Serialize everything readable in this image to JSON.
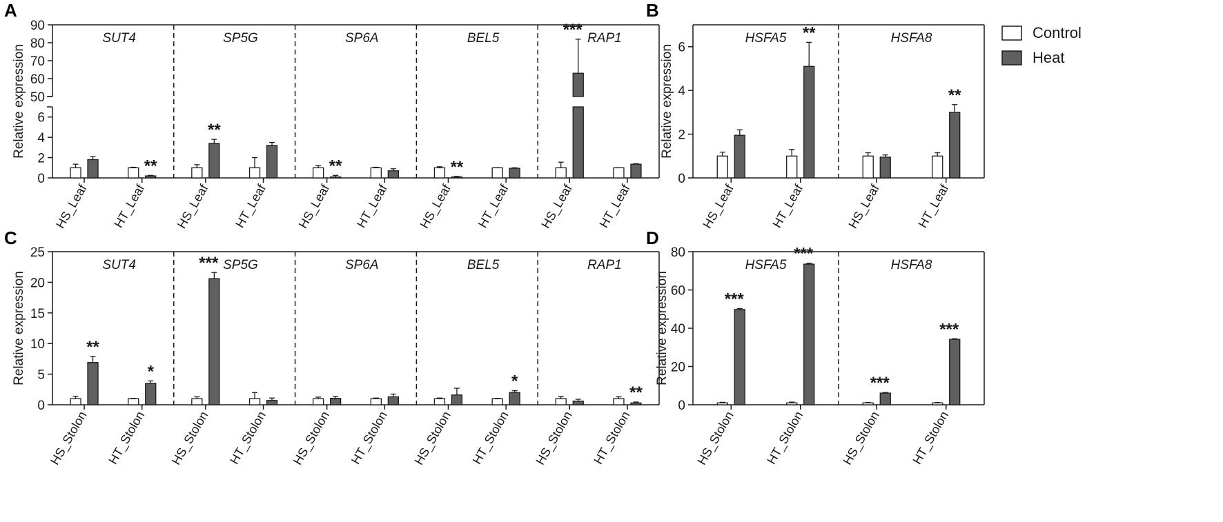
{
  "colors": {
    "control": "#ffffff",
    "heat": "#606060",
    "stroke": "#1a1a1a"
  },
  "legend": {
    "entries": [
      "Control",
      "Heat"
    ]
  },
  "chart_data": [
    {
      "panel": "A",
      "type": "bar",
      "ylabel": "Relative expression",
      "y_axis_break": true,
      "lower_ticks": [
        0,
        2,
        4,
        6
      ],
      "upper_ticks": [
        50,
        60,
        70,
        80,
        90
      ],
      "genes": [
        {
          "name": "SUT4",
          "groups": [
            {
              "label": "HS_Leaf",
              "control": 1.0,
              "control_err": 0.35,
              "heat": 1.8,
              "heat_err": 0.3,
              "sig": ""
            },
            {
              "label": "HT_Leaf",
              "control": 1.0,
              "control_err": 0.05,
              "heat": 0.2,
              "heat_err": 0.05,
              "sig": "**"
            }
          ]
        },
        {
          "name": "SP5G",
          "groups": [
            {
              "label": "HS_Leaf",
              "control": 1.0,
              "control_err": 0.3,
              "heat": 3.4,
              "heat_err": 0.4,
              "sig": "**"
            },
            {
              "label": "HT_Leaf",
              "control": 1.0,
              "control_err": 1.0,
              "heat": 3.2,
              "heat_err": 0.3,
              "sig": ""
            }
          ]
        },
        {
          "name": "SP6A",
          "groups": [
            {
              "label": "HS_Leaf",
              "control": 1.0,
              "control_err": 0.2,
              "heat": 0.1,
              "heat_err": 0.15,
              "sig": "**"
            },
            {
              "label": "HT_Leaf",
              "control": 1.0,
              "control_err": 0.05,
              "heat": 0.7,
              "heat_err": 0.2,
              "sig": ""
            }
          ]
        },
        {
          "name": "BEL5",
          "groups": [
            {
              "label": "HS_Leaf",
              "control": 1.0,
              "control_err": 0.1,
              "heat": 0.1,
              "heat_err": 0.05,
              "sig": "**"
            },
            {
              "label": "HT_Leaf",
              "control": 1.0,
              "control_err": 0.0,
              "heat": 0.95,
              "heat_err": 0.05,
              "sig": ""
            }
          ]
        },
        {
          "name": "RAP1",
          "groups": [
            {
              "label": "HS_Leaf",
              "control": 1.0,
              "control_err": 0.55,
              "heat": 63,
              "heat_err": 19,
              "sig": "***"
            },
            {
              "label": "HT_Leaf",
              "control": 1.0,
              "control_err": 0.0,
              "heat": 1.35,
              "heat_err": 0.05,
              "sig": ""
            }
          ]
        }
      ]
    },
    {
      "panel": "B",
      "type": "bar",
      "ylabel": "Relative expression",
      "ylim": [
        0,
        7
      ],
      "yticks": [
        0,
        2,
        4,
        6
      ],
      "genes": [
        {
          "name": "HSFA5",
          "groups": [
            {
              "label": "HS_Leaf",
              "control": 1.0,
              "control_err": 0.18,
              "heat": 1.95,
              "heat_err": 0.25,
              "sig": ""
            },
            {
              "label": "HT_Leaf",
              "control": 1.0,
              "control_err": 0.3,
              "heat": 5.1,
              "heat_err": 1.1,
              "sig": "**"
            }
          ]
        },
        {
          "name": "HSFA8",
          "groups": [
            {
              "label": "HS_Leaf",
              "control": 1.0,
              "control_err": 0.15,
              "heat": 0.95,
              "heat_err": 0.1,
              "sig": ""
            },
            {
              "label": "HT_Leaf",
              "control": 1.0,
              "control_err": 0.15,
              "heat": 3.0,
              "heat_err": 0.35,
              "sig": "**"
            }
          ]
        }
      ]
    },
    {
      "panel": "C",
      "type": "bar",
      "ylabel": "Relative expression",
      "ylim": [
        0,
        25
      ],
      "yticks": [
        0,
        5,
        10,
        15,
        20,
        25
      ],
      "genes": [
        {
          "name": "SUT4",
          "groups": [
            {
              "label": "HS_Stolon",
              "control": 1.0,
              "control_err": 0.4,
              "heat": 6.9,
              "heat_err": 1.0,
              "sig": "**"
            },
            {
              "label": "HT_Stolon",
              "control": 1.0,
              "control_err": 0.05,
              "heat": 3.5,
              "heat_err": 0.4,
              "sig": "*"
            }
          ]
        },
        {
          "name": "SP5G",
          "groups": [
            {
              "label": "HS_Stolon",
              "control": 1.0,
              "control_err": 0.3,
              "heat": 20.6,
              "heat_err": 1.0,
              "sig": "***"
            },
            {
              "label": "HT_Stolon",
              "control": 1.0,
              "control_err": 1.0,
              "heat": 0.7,
              "heat_err": 0.4,
              "sig": ""
            }
          ]
        },
        {
          "name": "SP6A",
          "groups": [
            {
              "label": "HS_Stolon",
              "control": 1.0,
              "control_err": 0.25,
              "heat": 1.05,
              "heat_err": 0.3,
              "sig": ""
            },
            {
              "label": "HT_Stolon",
              "control": 1.0,
              "control_err": 0.1,
              "heat": 1.3,
              "heat_err": 0.45,
              "sig": ""
            }
          ]
        },
        {
          "name": "BEL5",
          "groups": [
            {
              "label": "HS_Stolon",
              "control": 1.0,
              "control_err": 0.1,
              "heat": 1.6,
              "heat_err": 1.1,
              "sig": ""
            },
            {
              "label": "HT_Stolon",
              "control": 1.0,
              "control_err": 0.05,
              "heat": 2.0,
              "heat_err": 0.3,
              "sig": "*"
            }
          ]
        },
        {
          "name": "RAP1",
          "groups": [
            {
              "label": "HS_Stolon",
              "control": 1.0,
              "control_err": 0.35,
              "heat": 0.6,
              "heat_err": 0.3,
              "sig": ""
            },
            {
              "label": "HT_Stolon",
              "control": 1.0,
              "control_err": 0.3,
              "heat": 0.3,
              "heat_err": 0.15,
              "sig": "**"
            }
          ]
        }
      ]
    },
    {
      "panel": "D",
      "type": "bar",
      "ylabel": "Relative expression",
      "ylim": [
        0,
        80
      ],
      "yticks": [
        0,
        20,
        40,
        60,
        80
      ],
      "genes": [
        {
          "name": "HSFA5",
          "groups": [
            {
              "label": "HS_Stolon",
              "control": 1.0,
              "control_err": 0.3,
              "heat": 49.8,
              "heat_err": 0.5,
              "sig": "***"
            },
            {
              "label": "HT_Stolon",
              "control": 1.0,
              "control_err": 0.4,
              "heat": 73.5,
              "heat_err": 0.5,
              "sig": "***"
            }
          ]
        },
        {
          "name": "HSFA8",
          "groups": [
            {
              "label": "HS_Stolon",
              "control": 1.0,
              "control_err": 0.2,
              "heat": 6.1,
              "heat_err": 0.3,
              "sig": "***"
            },
            {
              "label": "HT_Stolon",
              "control": 1.0,
              "control_err": 0.2,
              "heat": 34.2,
              "heat_err": 0.3,
              "sig": "***"
            }
          ]
        }
      ]
    }
  ]
}
